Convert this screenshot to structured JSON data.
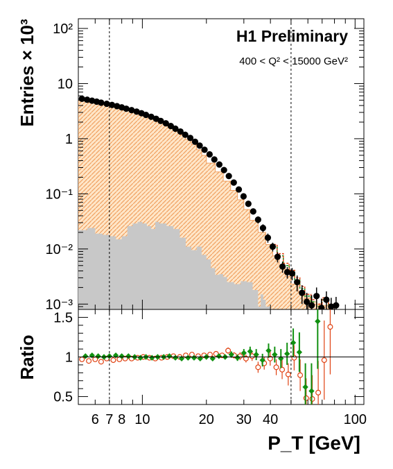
{
  "chart_data": [
    {
      "type": "scatter",
      "panel": "main",
      "title": "H1 Preliminary",
      "subtitle": "400 < Q² < 15000 GeV²",
      "ylabel": "Entries × 10³",
      "yscale": "log",
      "ylim": [
        0.0008,
        150
      ],
      "xscale": "log",
      "xlim": [
        5,
        110
      ],
      "ytick_labels": [
        "10⁻³",
        "10⁻²",
        "10⁻¹",
        "1",
        "10",
        "10²"
      ],
      "ytick_values": [
        0.001,
        0.01,
        0.1,
        1,
        10,
        100
      ],
      "vertical_lines": [
        7,
        50
      ],
      "colors": {
        "data": "#000000",
        "mc_stack": "#f0a060",
        "background": "#c8c8c8",
        "model_a": "#e04010",
        "model_b": "#109010",
        "vline": "#000000"
      },
      "series": [
        {
          "kind": "markers",
          "x": [
            5.2,
            5.5,
            5.8,
            6.1,
            6.4,
            6.8,
            7.2,
            7.6,
            8.0,
            8.4,
            8.9,
            9.4,
            9.9,
            10.4,
            11.0,
            11.6,
            12.2,
            12.9,
            13.6,
            14.3,
            15.1,
            15.9,
            16.8,
            17.7,
            18.6,
            19.6,
            20.7,
            21.8,
            23.0,
            24.2,
            25.5,
            26.9,
            28.4,
            29.9,
            31.5,
            33.2,
            35.0,
            36.9,
            38.9,
            41.0,
            43.2,
            45.6,
            48.0,
            50.6,
            53.4,
            56.3,
            59.3,
            62.5,
            65.9,
            69.5,
            73.3,
            77.2,
            81.4
          ],
          "y": [
            5.3,
            5.1,
            4.9,
            4.7,
            4.5,
            4.3,
            4.1,
            3.9,
            3.7,
            3.5,
            3.3,
            3.1,
            2.9,
            2.7,
            2.5,
            2.3,
            2.1,
            1.9,
            1.7,
            1.52,
            1.35,
            1.18,
            1.03,
            0.88,
            0.75,
            0.63,
            0.52,
            0.42,
            0.34,
            0.27,
            0.21,
            0.16,
            0.12,
            0.09,
            0.066,
            0.048,
            0.034,
            0.024,
            0.016,
            0.011,
            0.0072,
            0.0048,
            0.0038,
            0.0036,
            0.0025,
            0.0016,
            0.0011,
            0.00095,
            0.0014,
            0.00085,
            0.0012,
            0.0009,
            0.00095
          ],
          "yerr": [
            0.12,
            0.12,
            0.11,
            0.11,
            0.1,
            0.1,
            0.1,
            0.09,
            0.09,
            0.09,
            0.08,
            0.08,
            0.08,
            0.07,
            0.07,
            0.07,
            0.06,
            0.06,
            0.06,
            0.05,
            0.05,
            0.05,
            0.04,
            0.04,
            0.04,
            0.03,
            0.03,
            0.03,
            0.02,
            0.02,
            0.02,
            0.015,
            0.012,
            0.01,
            0.008,
            0.006,
            0.005,
            0.004,
            0.003,
            0.002,
            0.0015,
            0.0011,
            0.0009,
            0.0009,
            0.0008,
            0.0006,
            0.0005,
            0.0005,
            0.0006,
            0.0004,
            0.0005,
            0.0004,
            0.0004
          ]
        },
        {
          "kind": "histogram",
          "edges": [
            5,
            6,
            7,
            8,
            9,
            10,
            11,
            12,
            13,
            14,
            15,
            16,
            17,
            18,
            19,
            20,
            22,
            24,
            26,
            28,
            30,
            32,
            35,
            38,
            41,
            44,
            47,
            50,
            54,
            58,
            62,
            66,
            70,
            75,
            80
          ],
          "values": [
            4.9,
            4.4,
            3.9,
            3.5,
            3.1,
            2.7,
            2.35,
            2.0,
            1.7,
            1.42,
            1.18,
            0.97,
            0.79,
            0.63,
            0.5,
            0.36,
            0.25,
            0.17,
            0.115,
            0.078,
            0.052,
            0.033,
            0.02,
            0.012,
            0.0075,
            0.0048,
            0.0032,
            0.0023,
            0.0017,
            0.0013,
            0.0011,
            0.001,
            0.00095,
            0.0009
          ]
        },
        {
          "kind": "histogram",
          "edges": [
            5,
            5.5,
            6,
            6.5,
            7,
            7.5,
            8,
            8.5,
            9,
            9.5,
            10,
            10.5,
            11,
            11.5,
            12,
            13,
            14,
            15,
            16,
            17,
            18,
            19,
            20,
            21,
            22,
            23,
            24,
            25,
            27,
            29,
            31,
            33,
            35,
            36,
            37,
            38,
            40
          ],
          "values": [
            0.022,
            0.024,
            0.019,
            0.018,
            0.017,
            0.015,
            0.017,
            0.026,
            0.029,
            0.031,
            0.029,
            0.026,
            0.023,
            0.031,
            0.029,
            0.026,
            0.023,
            0.016,
            0.011,
            0.0095,
            0.011,
            0.0078,
            0.0065,
            0.0045,
            0.0034,
            0.0035,
            0.0031,
            0.0025,
            0.0023,
            0.0026,
            0.0025,
            0.0018,
            0.0009,
            0.0015,
            0.0012,
            0.0009
          ]
        },
        {
          "kind": "step",
          "x": [
            40,
            43,
            46,
            49,
            52,
            55,
            58,
            62,
            66,
            70,
            75
          ],
          "y": [
            0.011,
            0.0075,
            0.005,
            0.0038,
            0.0027,
            0.0019,
            0.0014,
            0.0011,
            0.0009,
            0.0012,
            0.0009
          ]
        },
        {
          "kind": "step",
          "x": [
            40,
            43,
            46,
            49,
            52,
            55,
            58,
            62,
            66,
            70,
            75
          ],
          "y": [
            0.012,
            0.0082,
            0.0055,
            0.0041,
            0.003,
            0.0021,
            0.0015,
            0.0012,
            0.001,
            0.0013,
            0.001
          ]
        }
      ]
    },
    {
      "type": "scatter",
      "panel": "ratio",
      "ylabel": "Ratio",
      "xlabel": "P_T [GeV]",
      "xscale": "log",
      "xlim": [
        5,
        110
      ],
      "ylim": [
        0.4,
        1.6
      ],
      "reference_line": 1,
      "xtick_labels": [
        "6",
        "7",
        "8",
        "10",
        "20",
        "30",
        "40",
        "100"
      ],
      "xtick_values": [
        6,
        7,
        8,
        10,
        20,
        30,
        40,
        100
      ],
      "ytick_labels": [
        "0.5",
        "1",
        "1.5"
      ],
      "ytick_values": [
        0.5,
        1,
        1.5
      ],
      "series": [
        {
          "kind": "open_circles",
          "x": [
            5.2,
            5.6,
            6.0,
            6.4,
            6.8,
            7.3,
            7.8,
            8.3,
            8.9,
            9.5,
            10.1,
            10.8,
            11.5,
            12.3,
            13.1,
            14.0,
            15.0,
            16.0,
            17.1,
            18.3,
            19.5,
            20.8,
            22.2,
            23.7,
            25.3,
            27.0,
            28.8,
            30.7,
            32.8,
            35.0,
            37.4,
            39.9,
            42.6,
            45.4,
            48.5,
            51.7,
            55.2,
            58.9,
            62.9,
            67.1,
            71.6,
            76.4
          ],
          "y": [
            0.97,
            0.95,
            0.97,
            0.94,
            0.98,
            0.96,
            0.97,
            0.98,
            0.98,
            0.99,
            1.0,
            0.99,
            0.98,
            0.99,
            1.0,
            1.01,
            1.0,
            1.02,
            1.03,
            1.01,
            1.02,
            1.03,
            1.04,
            1.02,
            1.08,
            1.02,
            1.01,
            0.98,
            1.01,
            0.87,
            0.92,
            0.98,
            0.87,
            0.84,
            0.78,
            0.99,
            0.77,
            0.48,
            0.47,
            0.55,
            0.96,
            1.38
          ],
          "yerr": [
            0.02,
            0.02,
            0.02,
            0.02,
            0.02,
            0.02,
            0.02,
            0.02,
            0.02,
            0.02,
            0.02,
            0.02,
            0.02,
            0.02,
            0.02,
            0.02,
            0.02,
            0.02,
            0.02,
            0.02,
            0.03,
            0.03,
            0.03,
            0.03,
            0.04,
            0.04,
            0.05,
            0.05,
            0.06,
            0.07,
            0.08,
            0.09,
            0.1,
            0.12,
            0.14,
            0.16,
            0.2,
            0.25,
            0.3,
            0.4,
            0.5,
            0.6
          ]
        },
        {
          "kind": "filled_diamonds",
          "x": [
            5.4,
            5.8,
            6.2,
            6.6,
            7.0,
            7.5,
            8.0,
            8.6,
            9.2,
            9.8,
            10.4,
            11.1,
            11.8,
            12.6,
            13.4,
            14.3,
            15.3,
            16.4,
            17.5,
            18.7,
            20.0,
            21.4,
            22.9,
            24.5,
            26.2,
            28.0,
            30.0,
            32.1,
            34.3,
            36.7,
            39.2,
            41.9,
            44.8,
            47.9,
            51.2,
            54.7,
            58.4,
            62.4,
            66.7
          ],
          "y": [
            1.01,
            1.02,
            1.01,
            1.0,
            1.01,
            1.02,
            1.01,
            1.01,
            1.0,
            0.99,
            1.0,
            0.99,
            1.0,
            1.0,
            1.01,
            0.99,
            0.98,
            0.99,
            0.99,
            0.98,
            1.0,
            0.98,
            1.01,
            1.0,
            1.03,
            0.99,
            1.05,
            1.07,
            1.03,
            0.96,
            1.08,
            1.03,
            0.98,
            1.04,
            1.18,
            1.06,
            0.62,
            0.57,
            1.45
          ],
          "yerr": [
            0.02,
            0.02,
            0.02,
            0.02,
            0.02,
            0.02,
            0.02,
            0.02,
            0.02,
            0.02,
            0.02,
            0.02,
            0.02,
            0.02,
            0.02,
            0.02,
            0.02,
            0.02,
            0.02,
            0.02,
            0.03,
            0.03,
            0.03,
            0.03,
            0.04,
            0.04,
            0.05,
            0.06,
            0.07,
            0.08,
            0.09,
            0.1,
            0.12,
            0.14,
            0.18,
            0.25,
            0.3,
            0.35,
            0.6
          ]
        }
      ],
      "vertical_lines": [
        7,
        50
      ]
    }
  ]
}
